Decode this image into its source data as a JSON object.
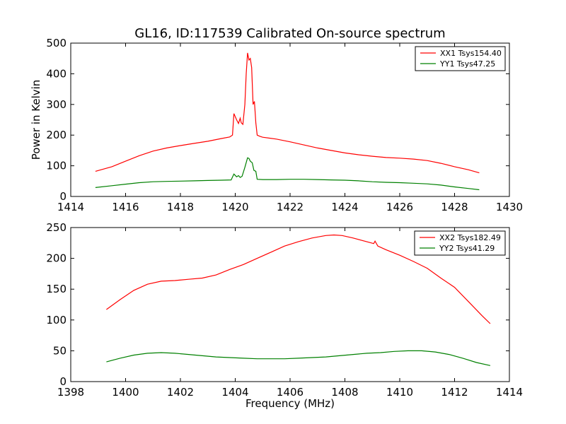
{
  "chart_data": [
    {
      "type": "line",
      "title": "GL16, ID:117539 Calibrated On-source spectrum",
      "xlabel": "",
      "ylabel": "Power in Kelvin",
      "xlim": [
        1414,
        1430
      ],
      "ylim": [
        0,
        500
      ],
      "xticks": [
        1414,
        1416,
        1418,
        1420,
        1422,
        1424,
        1426,
        1428,
        1430
      ],
      "yticks": [
        0,
        100,
        200,
        300,
        400,
        500
      ],
      "legend": "top-right",
      "grid": false,
      "series": [
        {
          "name": "XX1 Tsys154.40",
          "color": "#ff0000",
          "points": [
            [
              1414.9,
              82
            ],
            [
              1415.5,
              97
            ],
            [
              1416,
              115
            ],
            [
              1416.5,
              133
            ],
            [
              1417,
              148
            ],
            [
              1417.5,
              158
            ],
            [
              1418,
              166
            ],
            [
              1418.5,
              173
            ],
            [
              1419,
              180
            ],
            [
              1419.5,
              189
            ],
            [
              1419.8,
              194
            ],
            [
              1419.9,
              200
            ],
            [
              1419.95,
              270
            ],
            [
              1420.05,
              250
            ],
            [
              1420.12,
              238
            ],
            [
              1420.18,
              255
            ],
            [
              1420.22,
              240
            ],
            [
              1420.28,
              235
            ],
            [
              1420.35,
              300
            ],
            [
              1420.4,
              400
            ],
            [
              1420.45,
              468
            ],
            [
              1420.5,
              445
            ],
            [
              1420.55,
              450
            ],
            [
              1420.6,
              420
            ],
            [
              1420.65,
              300
            ],
            [
              1420.7,
              310
            ],
            [
              1420.75,
              240
            ],
            [
              1420.8,
              200
            ],
            [
              1420.9,
              196
            ],
            [
              1421,
              193
            ],
            [
              1421.5,
              187
            ],
            [
              1422,
              178
            ],
            [
              1422.5,
              168
            ],
            [
              1423,
              158
            ],
            [
              1423.5,
              150
            ],
            [
              1424,
              142
            ],
            [
              1424.5,
              136
            ],
            [
              1425,
              131
            ],
            [
              1425.5,
              127
            ],
            [
              1426,
              125
            ],
            [
              1426.5,
              122
            ],
            [
              1427,
              117
            ],
            [
              1427.5,
              108
            ],
            [
              1428,
              97
            ],
            [
              1428.5,
              87
            ],
            [
              1428.9,
              77
            ]
          ]
        },
        {
          "name": "YY1 Tsys47.25",
          "color": "#008000",
          "points": [
            [
              1414.9,
              29
            ],
            [
              1415.5,
              35
            ],
            [
              1416,
              40
            ],
            [
              1416.5,
              45
            ],
            [
              1417,
              48
            ],
            [
              1417.5,
              49
            ],
            [
              1418,
              50
            ],
            [
              1418.5,
              51
            ],
            [
              1419,
              52
            ],
            [
              1419.5,
              53
            ],
            [
              1419.85,
              54
            ],
            [
              1419.95,
              73
            ],
            [
              1420.05,
              64
            ],
            [
              1420.12,
              68
            ],
            [
              1420.18,
              62
            ],
            [
              1420.25,
              66
            ],
            [
              1420.35,
              95
            ],
            [
              1420.45,
              126
            ],
            [
              1420.5,
              124
            ],
            [
              1420.55,
              115
            ],
            [
              1420.62,
              110
            ],
            [
              1420.68,
              85
            ],
            [
              1420.75,
              82
            ],
            [
              1420.8,
              56
            ],
            [
              1421,
              55
            ],
            [
              1421.5,
              55
            ],
            [
              1422,
              56
            ],
            [
              1422.5,
              56
            ],
            [
              1423,
              55
            ],
            [
              1423.5,
              54
            ],
            [
              1424,
              53
            ],
            [
              1424.5,
              51
            ],
            [
              1425,
              48
            ],
            [
              1425.5,
              46
            ],
            [
              1426,
              45
            ],
            [
              1426.5,
              43
            ],
            [
              1427,
              41
            ],
            [
              1427.5,
              37
            ],
            [
              1428,
              31
            ],
            [
              1428.5,
              26
            ],
            [
              1428.9,
              22
            ]
          ]
        }
      ]
    },
    {
      "type": "line",
      "title": "",
      "xlabel": "Frequency (MHz)",
      "ylabel": "",
      "xlim": [
        1398,
        1414
      ],
      "ylim": [
        0,
        250
      ],
      "xticks": [
        1398,
        1400,
        1402,
        1404,
        1406,
        1408,
        1410,
        1412,
        1414
      ],
      "yticks": [
        0,
        50,
        100,
        150,
        200,
        250
      ],
      "legend": "top-right",
      "grid": false,
      "series": [
        {
          "name": "XX2 Tsys182.49",
          "color": "#ff0000",
          "points": [
            [
              1399.3,
              117
            ],
            [
              1399.8,
              133
            ],
            [
              1400.3,
              148
            ],
            [
              1400.8,
              158
            ],
            [
              1401.3,
              163
            ],
            [
              1401.8,
              164
            ],
            [
              1402.3,
              166
            ],
            [
              1402.8,
              168
            ],
            [
              1403.3,
              173
            ],
            [
              1403.8,
              182
            ],
            [
              1404.3,
              190
            ],
            [
              1404.8,
              200
            ],
            [
              1405.3,
              210
            ],
            [
              1405.8,
              220
            ],
            [
              1406.3,
              227
            ],
            [
              1406.8,
              233
            ],
            [
              1407.3,
              237
            ],
            [
              1407.6,
              238
            ],
            [
              1407.9,
              237
            ],
            [
              1408.3,
              233
            ],
            [
              1408.8,
              227
            ],
            [
              1409.05,
              224
            ],
            [
              1409.1,
              228
            ],
            [
              1409.2,
              220
            ],
            [
              1409.5,
              214
            ],
            [
              1410,
              205
            ],
            [
              1410.5,
              195
            ],
            [
              1411,
              184
            ],
            [
              1411.5,
              168
            ],
            [
              1412,
              153
            ],
            [
              1412.5,
              130
            ],
            [
              1413,
              107
            ],
            [
              1413.3,
              94
            ]
          ]
        },
        {
          "name": "YY2 Tsys41.29",
          "color": "#008000",
          "points": [
            [
              1399.3,
              32
            ],
            [
              1399.8,
              38
            ],
            [
              1400.3,
              43
            ],
            [
              1400.8,
              46
            ],
            [
              1401.3,
              47
            ],
            [
              1401.8,
              46
            ],
            [
              1402.3,
              44
            ],
            [
              1402.8,
              42
            ],
            [
              1403.3,
              40
            ],
            [
              1403.8,
              39
            ],
            [
              1404.3,
              38
            ],
            [
              1404.8,
              37
            ],
            [
              1405.3,
              37
            ],
            [
              1405.8,
              37
            ],
            [
              1406.3,
              38
            ],
            [
              1406.8,
              39
            ],
            [
              1407.3,
              40
            ],
            [
              1407.8,
              42
            ],
            [
              1408.3,
              44
            ],
            [
              1408.8,
              46
            ],
            [
              1409.3,
              47
            ],
            [
              1409.8,
              49
            ],
            [
              1410.3,
              50
            ],
            [
              1410.8,
              50
            ],
            [
              1411.3,
              48
            ],
            [
              1411.8,
              44
            ],
            [
              1412.3,
              38
            ],
            [
              1412.8,
              31
            ],
            [
              1413.3,
              26
            ]
          ]
        }
      ]
    }
  ]
}
